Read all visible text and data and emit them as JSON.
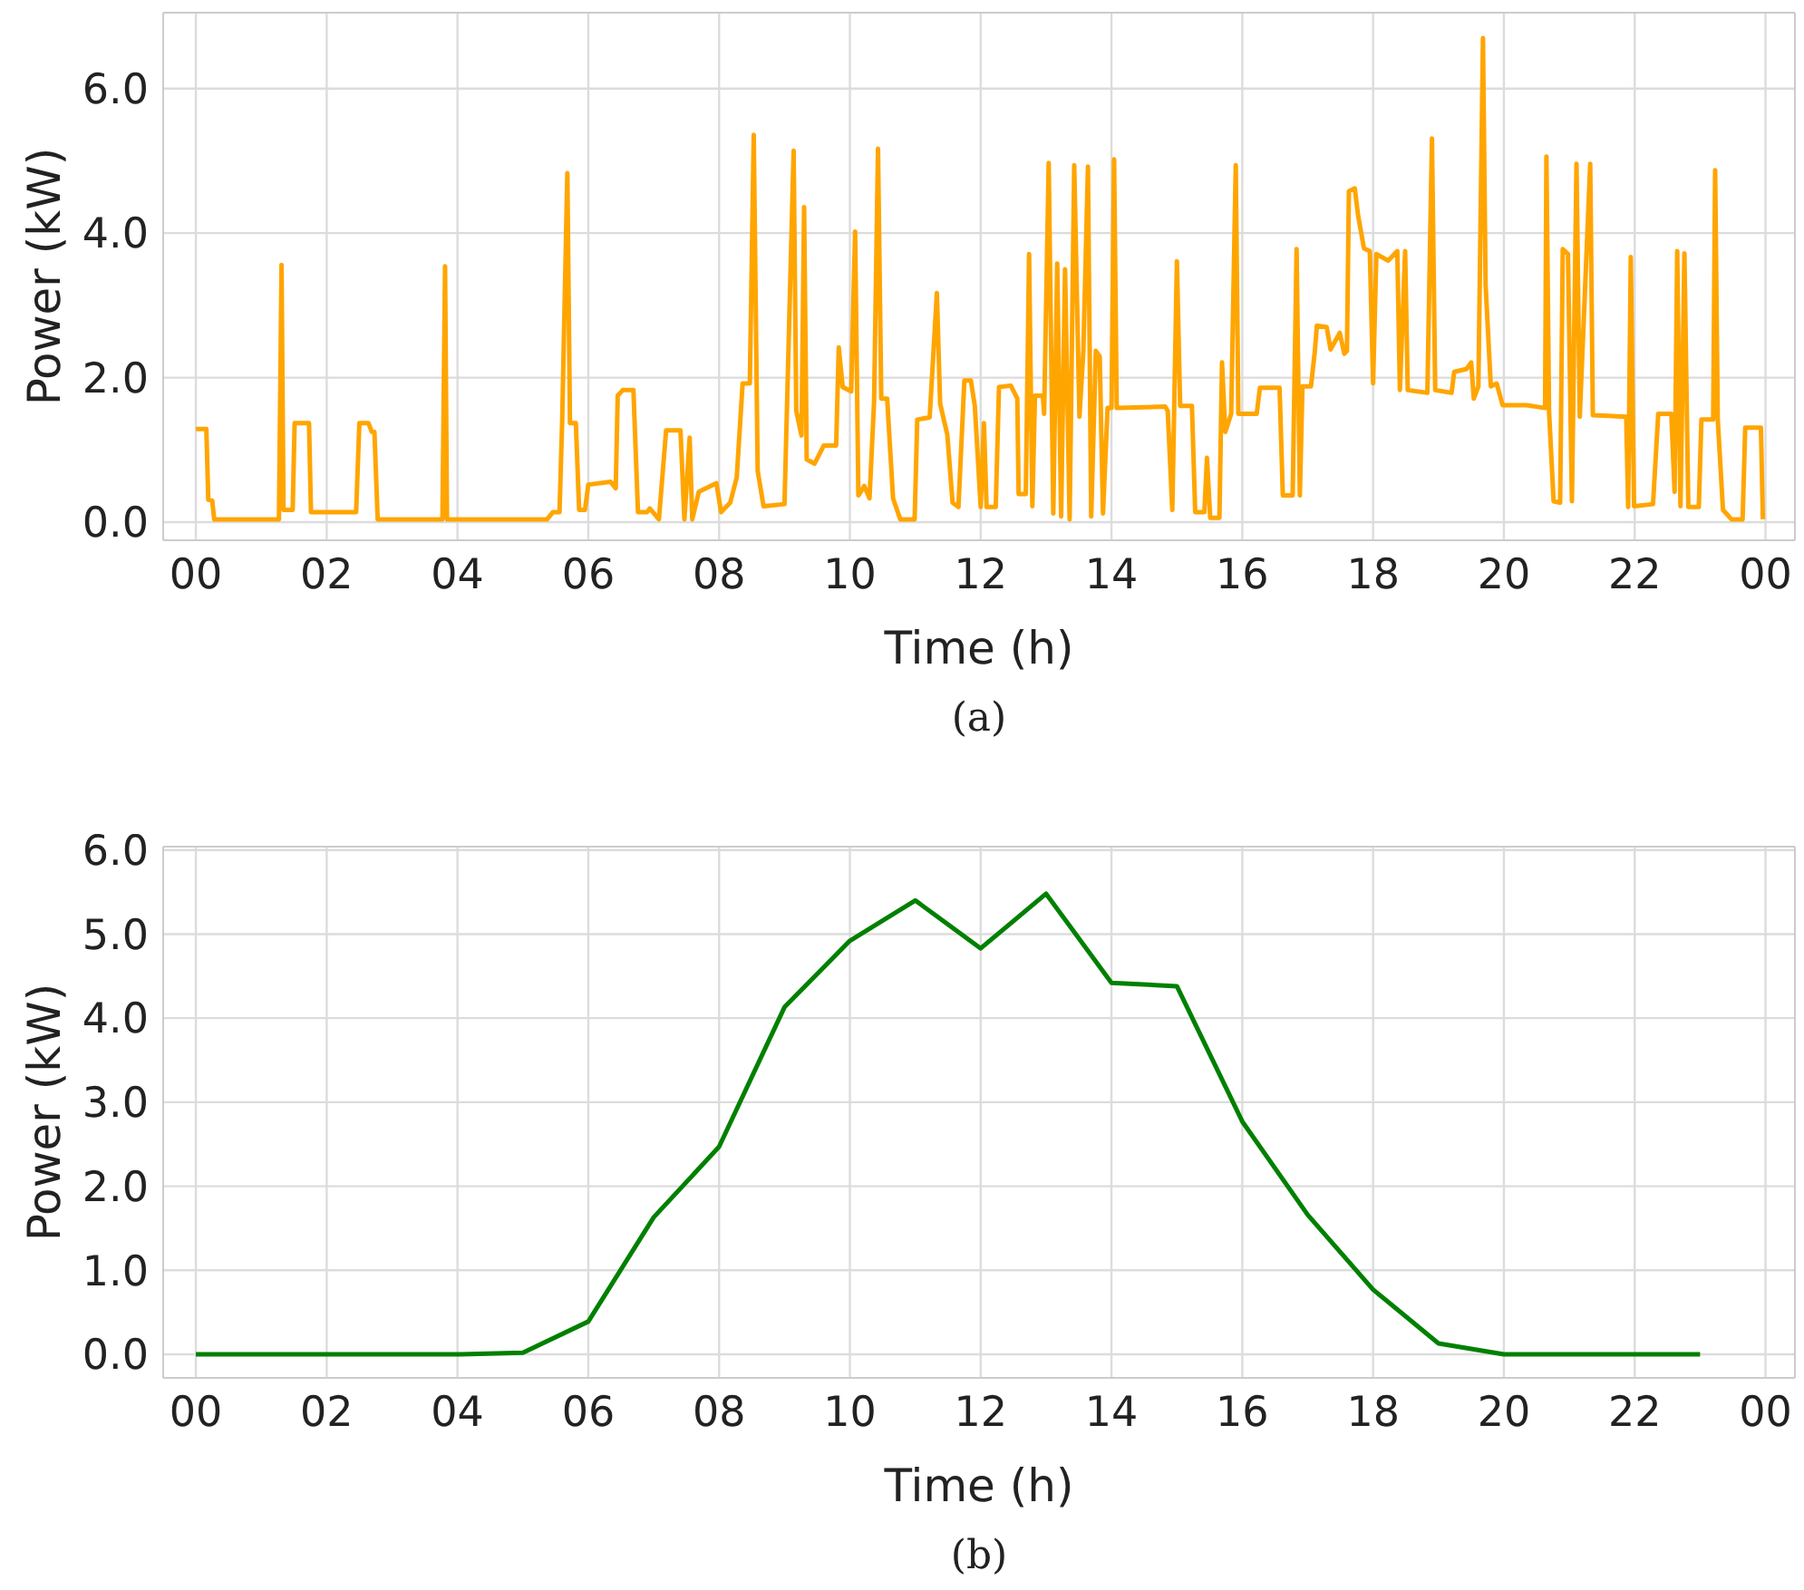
{
  "chart_data": [
    {
      "type": "line",
      "xlabel": "Time (h)",
      "ylabel": "Power (kW)",
      "annotations": [
        "(a)"
      ],
      "grid": true,
      "xlim": [
        -0.5,
        24.45
      ],
      "ylim": [
        -0.25,
        7.05
      ],
      "xticks": [
        {
          "value": 0,
          "label": "00"
        },
        {
          "value": 2,
          "label": "02"
        },
        {
          "value": 4,
          "label": "04"
        },
        {
          "value": 6,
          "label": "06"
        },
        {
          "value": 8,
          "label": "08"
        },
        {
          "value": 10,
          "label": "10"
        },
        {
          "value": 12,
          "label": "12"
        },
        {
          "value": 14,
          "label": "14"
        },
        {
          "value": 16,
          "label": "16"
        },
        {
          "value": 18,
          "label": "18"
        },
        {
          "value": 20,
          "label": "20"
        },
        {
          "value": 22,
          "label": "22"
        },
        {
          "value": 24,
          "label": "00"
        }
      ],
      "yticks": [
        {
          "value": 0,
          "label": "0.0"
        },
        {
          "value": 2,
          "label": "2.0"
        },
        {
          "value": 4,
          "label": "4.0"
        },
        {
          "value": 6,
          "label": "6.0"
        }
      ],
      "series": [
        {
          "color": "#ffa500",
          "x": [
            0,
            0.16,
            0.19,
            0.25,
            0.28,
            1.27,
            1.31,
            1.34,
            1.48,
            1.51,
            1.73,
            1.76,
            2.45,
            2.5,
            2.64,
            2.69,
            2.73,
            2.78,
            3.77,
            3.81,
            3.84,
            5.37,
            5.46,
            5.56,
            5.6,
            5.68,
            5.72,
            5.81,
            5.86,
            5.95,
            6.0,
            6.34,
            6.42,
            6.45,
            6.53,
            6.69,
            6.76,
            6.9,
            6.94,
            7.08,
            7.19,
            7.41,
            7.47,
            7.55,
            7.59,
            7.69,
            7.96,
            8.03,
            8.17,
            8.27,
            8.36,
            8.47,
            8.53,
            8.59,
            8.68,
            9.0,
            9.05,
            9.14,
            9.18,
            9.26,
            9.3,
            9.34,
            9.46,
            9.6,
            9.79,
            9.83,
            9.89,
            10.02,
            10.08,
            10.13,
            10.22,
            10.3,
            10.37,
            10.43,
            10.48,
            10.57,
            10.66,
            10.77,
            10.99,
            11.03,
            11.22,
            11.33,
            11.38,
            11.49,
            11.57,
            11.66,
            11.75,
            11.85,
            11.91,
            12.0,
            12.05,
            12.09,
            12.23,
            12.28,
            12.46,
            12.56,
            12.58,
            12.69,
            12.74,
            12.79,
            12.83,
            12.95,
            12.97,
            13.04,
            13.11,
            13.17,
            13.23,
            13.29,
            13.36,
            13.43,
            13.51,
            13.57,
            13.64,
            13.69,
            13.76,
            13.82,
            13.87,
            13.94,
            14.0,
            14.04,
            14.08,
            14.82,
            14.86,
            14.93,
            15.0,
            15.05,
            15.23,
            15.28,
            15.42,
            15.46,
            15.51,
            15.65,
            15.69,
            15.74,
            15.83,
            15.9,
            15.94,
            16.22,
            16.27,
            16.57,
            16.62,
            16.77,
            16.83,
            16.88,
            16.92,
            17.05,
            17.11,
            17.14,
            17.29,
            17.35,
            17.49,
            17.56,
            17.6,
            17.63,
            17.72,
            17.77,
            17.86,
            17.95,
            18.0,
            18.05,
            18.23,
            18.37,
            18.41,
            18.49,
            18.53,
            18.83,
            18.9,
            18.95,
            19.2,
            19.24,
            19.43,
            19.5,
            19.54,
            19.61,
            19.68,
            19.72,
            19.8,
            19.89,
            19.98,
            20.35,
            20.63,
            20.65,
            20.69,
            20.76,
            20.86,
            20.9,
            20.98,
            21.04,
            21.11,
            21.16,
            21.32,
            21.36,
            21.87,
            21.9,
            21.94,
            21.99,
            22.28,
            22.36,
            22.56,
            22.61,
            22.65,
            22.7,
            22.76,
            22.82,
            22.98,
            23.02,
            23.2,
            23.23,
            23.27,
            23.35,
            23.48,
            23.65,
            23.69,
            23.93,
            23.96
          ],
          "values": [
            1.29,
            1.29,
            0.31,
            0.3,
            0.04,
            0.04,
            3.56,
            0.17,
            0.17,
            1.37,
            1.37,
            0.14,
            0.14,
            1.37,
            1.37,
            1.25,
            1.25,
            0.04,
            0.04,
            3.54,
            0.04,
            0.04,
            0.14,
            0.14,
            1.37,
            4.83,
            1.37,
            1.37,
            0.17,
            0.17,
            0.52,
            0.56,
            0.47,
            1.75,
            1.83,
            1.83,
            0.14,
            0.14,
            0.19,
            0.04,
            1.27,
            1.27,
            0.04,
            1.17,
            0.04,
            0.42,
            0.54,
            0.14,
            0.27,
            0.62,
            1.92,
            1.92,
            5.36,
            0.71,
            0.22,
            0.25,
            2.0,
            5.14,
            1.54,
            1.2,
            4.36,
            0.87,
            0.81,
            1.06,
            1.06,
            2.42,
            1.87,
            1.81,
            4.02,
            0.37,
            0.5,
            0.33,
            1.67,
            5.17,
            1.71,
            1.71,
            0.33,
            0.04,
            0.04,
            1.42,
            1.45,
            3.17,
            1.64,
            1.21,
            0.27,
            0.21,
            1.96,
            1.96,
            1.61,
            0.21,
            1.37,
            0.21,
            0.21,
            1.87,
            1.89,
            1.71,
            0.39,
            0.39,
            3.71,
            0.22,
            1.75,
            1.75,
            1.5,
            4.97,
            0.12,
            3.58,
            0.08,
            3.5,
            0.04,
            4.94,
            1.46,
            2.37,
            4.92,
            0.08,
            2.37,
            2.29,
            0.12,
            1.58,
            1.58,
            5.02,
            1.58,
            1.6,
            1.54,
            0.17,
            3.61,
            1.61,
            1.61,
            0.14,
            0.14,
            0.89,
            0.06,
            0.06,
            2.21,
            1.25,
            1.5,
            4.94,
            1.5,
            1.5,
            1.86,
            1.86,
            0.37,
            0.37,
            3.78,
            0.37,
            1.88,
            1.88,
            2.37,
            2.72,
            2.7,
            2.39,
            2.62,
            2.33,
            2.37,
            4.58,
            4.62,
            4.25,
            3.79,
            3.75,
            1.92,
            3.71,
            3.62,
            3.75,
            1.83,
            3.75,
            1.83,
            1.79,
            5.31,
            1.83,
            1.79,
            2.08,
            2.12,
            2.21,
            1.71,
            1.88,
            6.7,
            3.29,
            1.88,
            1.92,
            1.62,
            1.62,
            1.58,
            5.06,
            1.54,
            0.29,
            0.27,
            3.78,
            3.71,
            0.29,
            4.96,
            1.46,
            4.96,
            1.48,
            1.46,
            0.21,
            3.67,
            0.22,
            0.25,
            1.5,
            1.5,
            0.42,
            3.75,
            0.22,
            3.72,
            0.21,
            0.21,
            1.42,
            1.42,
            4.87,
            1.42,
            0.17,
            0.04,
            0.04,
            1.31,
            1.31,
            0.04
          ]
        }
      ]
    },
    {
      "type": "line",
      "xlabel": "Time (h)",
      "ylabel": "Power (kW)",
      "annotations": [
        "(b)"
      ],
      "grid": true,
      "xlim": [
        -0.5,
        24.45
      ],
      "ylim": [
        -0.28,
        6.04
      ],
      "xticks": [
        {
          "value": 0,
          "label": "00"
        },
        {
          "value": 2,
          "label": "02"
        },
        {
          "value": 4,
          "label": "04"
        },
        {
          "value": 6,
          "label": "06"
        },
        {
          "value": 8,
          "label": "08"
        },
        {
          "value": 10,
          "label": "10"
        },
        {
          "value": 12,
          "label": "12"
        },
        {
          "value": 14,
          "label": "14"
        },
        {
          "value": 16,
          "label": "16"
        },
        {
          "value": 18,
          "label": "18"
        },
        {
          "value": 20,
          "label": "20"
        },
        {
          "value": 22,
          "label": "22"
        },
        {
          "value": 24,
          "label": "00"
        }
      ],
      "yticks": [
        {
          "value": 0,
          "label": "0.0"
        },
        {
          "value": 1,
          "label": "1.0"
        },
        {
          "value": 2,
          "label": "2.0"
        },
        {
          "value": 3,
          "label": "3.0"
        },
        {
          "value": 4,
          "label": "4.0"
        },
        {
          "value": 5,
          "label": "5.0"
        },
        {
          "value": 6,
          "label": "6.0"
        }
      ],
      "x": [
        0,
        1,
        2,
        3,
        4,
        5,
        6,
        7,
        8,
        9,
        10,
        11,
        12,
        13,
        14,
        15,
        16,
        17,
        18,
        19,
        20,
        21,
        22,
        23
      ],
      "series": [
        {
          "color": "#008000",
          "values": [
            0,
            0,
            0,
            0,
            0,
            0.02,
            0.39,
            1.63,
            2.47,
            4.13,
            4.92,
            5.4,
            4.83,
            5.48,
            4.42,
            4.38,
            2.77,
            1.66,
            0.77,
            0.13,
            0,
            0,
            0,
            0
          ]
        }
      ]
    }
  ]
}
